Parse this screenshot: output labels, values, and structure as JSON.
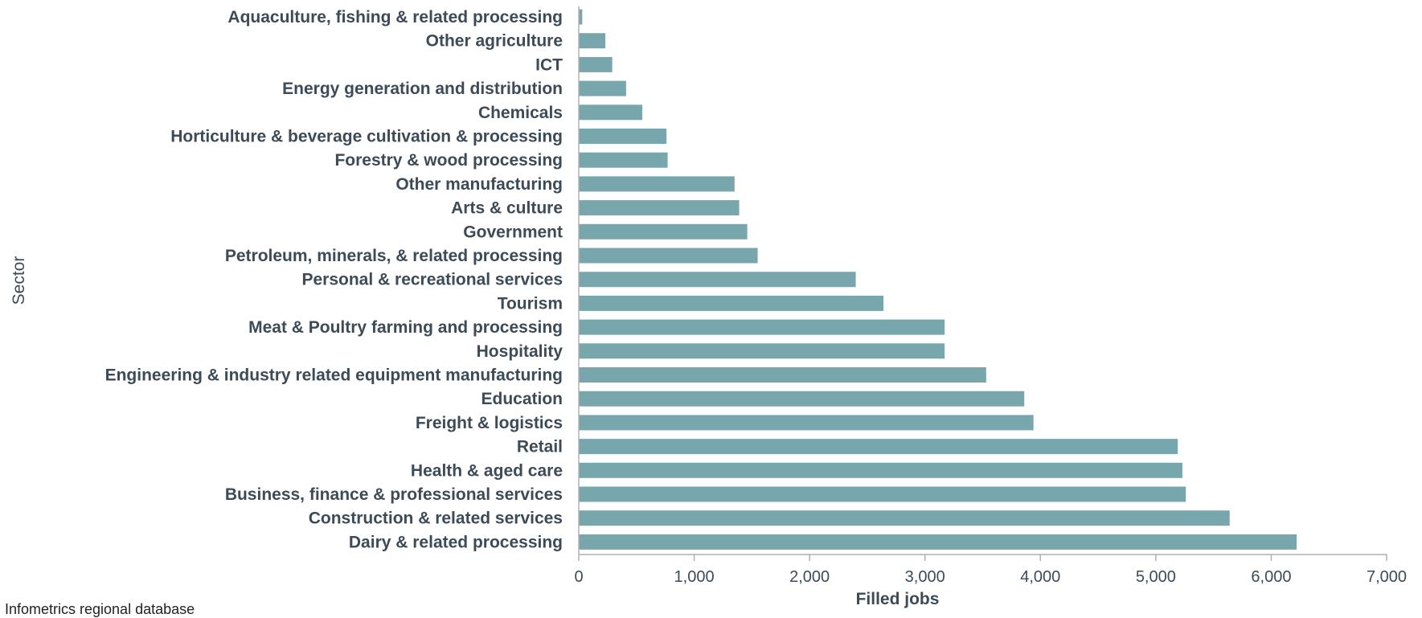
{
  "chart_data": {
    "type": "bar",
    "orientation": "horizontal",
    "xlabel": "Filled jobs",
    "ylabel": "Sector",
    "xlim": [
      0,
      7000
    ],
    "xticks": [
      0,
      1000,
      2000,
      3000,
      4000,
      5000,
      6000,
      7000
    ],
    "xtick_labels": [
      "0",
      "1,000",
      "2,000",
      "3,000",
      "4,000",
      "5,000",
      "6,000",
      "7,000"
    ],
    "grid": false,
    "bar_color": "#78a6ad",
    "categories": [
      "Aquaculture, fishing & related processing",
      "Other agriculture",
      "ICT",
      "Energy generation and distribution",
      "Chemicals",
      "Horticulture & beverage cultivation & processing",
      "Forestry & wood processing",
      "Other manufacturing",
      "Arts & culture",
      "Government",
      "Petroleum, minerals, & related processing",
      "Personal & recreational services",
      "Tourism",
      "Meat & Poultry farming and processing",
      "Hospitality",
      "Engineering & industry related equipment manufacturing",
      "Education",
      "Freight & logistics",
      "Retail",
      "Health & aged care",
      "Business, finance & professional services",
      "Construction & related services",
      "Dairy & related processing"
    ],
    "values": [
      30,
      230,
      290,
      410,
      550,
      760,
      770,
      1350,
      1390,
      1460,
      1550,
      2400,
      2640,
      3170,
      3170,
      3530,
      3860,
      3940,
      5190,
      5230,
      5260,
      5640,
      6220
    ]
  },
  "footer": {
    "note": "Infometrics regional database"
  }
}
